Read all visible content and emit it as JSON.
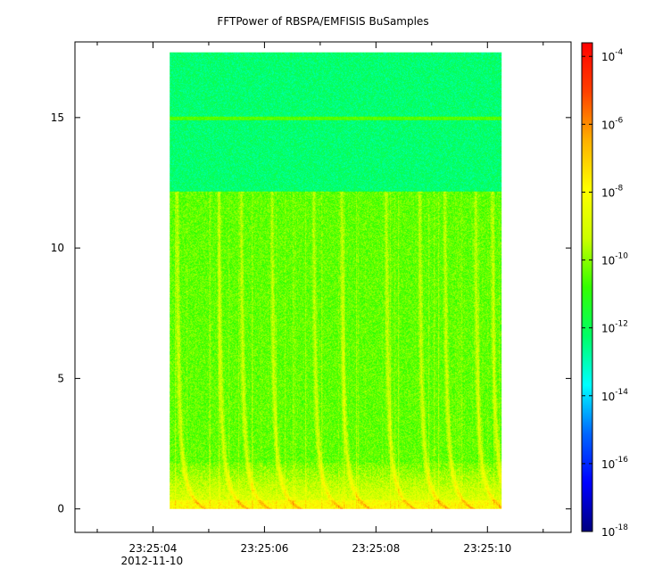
{
  "chart_data": {
    "type": "heatmap",
    "title": "FFTPower of RBSPA/EMFISIS  BuSamples",
    "xlabel": "",
    "ylabel": "",
    "x_ticks": [
      {
        "label": "23:25:04",
        "seconds": 4
      },
      {
        "label": "23:25:06",
        "seconds": 6
      },
      {
        "label": "23:25:08",
        "seconds": 8
      },
      {
        "label": "23:25:10",
        "seconds": 10
      }
    ],
    "x_minor_tick_seconds": [
      3,
      5,
      7,
      9,
      11
    ],
    "x_date_label": "2012-11-10",
    "xlim_seconds": [
      2.6,
      11.5
    ],
    "data_x_range_seconds": [
      4.3,
      10.25
    ],
    "y_ticks": [
      0,
      5,
      10,
      15
    ],
    "ylim": [
      -0.9,
      17.9
    ],
    "data_y_range": [
      0,
      17.5
    ],
    "colorbar": {
      "scale": "log",
      "range_exponents": [
        -18,
        -3.6
      ],
      "tick_exponents": [
        -18,
        -16,
        -14,
        -12,
        -10,
        -8,
        -6,
        -4
      ],
      "tick_base": "10",
      "colors": [
        "#00007f",
        "#0000ff",
        "#0066ff",
        "#00ffff",
        "#00ff66",
        "#33ff00",
        "#ccff00",
        "#ffff00",
        "#ffb000",
        "#ff4000",
        "#ff0000"
      ]
    },
    "background_levels": {
      "upper_band_exponent": -12.3,
      "upper_band_start": 12.2,
      "lower_band_exponent": -10.4,
      "line_frequency": 15.0,
      "line_exponent": -10.5
    },
    "chorus_bursts_seconds": [
      4.4,
      5.15,
      5.55,
      6.1,
      6.85,
      7.35,
      8.15,
      8.75,
      9.2,
      9.75,
      10.05
    ]
  }
}
